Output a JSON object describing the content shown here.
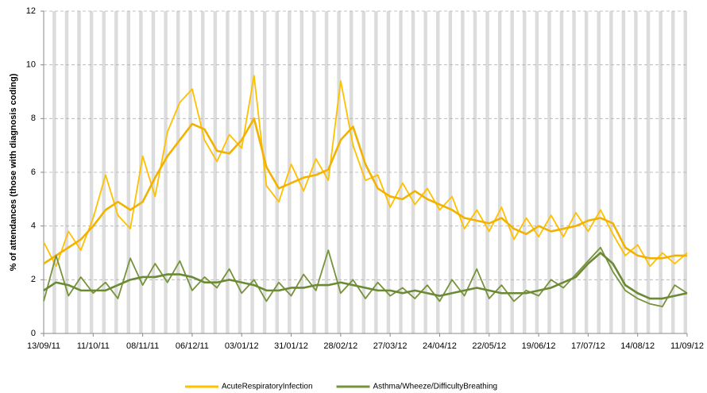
{
  "chart_data": {
    "type": "line",
    "y_label": "% of attendances (those with diagnosis coding)",
    "categories": [
      "13/09/11",
      null,
      null,
      null,
      "11/10/11",
      null,
      null,
      null,
      "08/11/11",
      null,
      null,
      null,
      "06/12/11",
      null,
      null,
      null,
      "03/01/12",
      null,
      null,
      null,
      "31/01/12",
      null,
      null,
      null,
      "28/02/12",
      null,
      null,
      null,
      "27/03/12",
      null,
      null,
      null,
      "24/04/12",
      null,
      null,
      null,
      "22/05/12",
      null,
      null,
      null,
      "19/06/12",
      null,
      null,
      null,
      "17/07/12",
      null,
      null,
      null,
      "14/08/12",
      null,
      null,
      null,
      "11/09/12"
    ],
    "series": [
      {
        "name": "AcuteRespiratoryInfection",
        "color": "#ffc000",
        "values": [
          3.4,
          2.5,
          3.8,
          3.1,
          4.3,
          5.9,
          4.4,
          3.9,
          6.6,
          5.1,
          7.5,
          8.6,
          9.1,
          7.2,
          6.4,
          7.4,
          6.9,
          9.6,
          5.5,
          4.9,
          6.3,
          5.3,
          6.5,
          5.7,
          9.4,
          7.0,
          5.7,
          5.9,
          4.7,
          5.6,
          4.8,
          5.4,
          4.6,
          5.1,
          3.9,
          4.6,
          3.8,
          4.7,
          3.5,
          4.3,
          3.6,
          4.4,
          3.6,
          4.5,
          3.8,
          4.6,
          3.7,
          2.9,
          3.3,
          2.5,
          3.0,
          2.6,
          3.0
        ]
      },
      {
        "color": "#f2b300",
        "values": [
          2.6,
          2.9,
          3.2,
          3.5,
          4.0,
          4.6,
          4.9,
          4.6,
          4.9,
          5.8,
          6.6,
          7.2,
          7.8,
          7.6,
          6.8,
          6.7,
          7.2,
          8.0,
          6.2,
          5.4,
          5.6,
          5.8,
          5.9,
          6.1,
          7.2,
          7.7,
          6.3,
          5.4,
          5.1,
          5.0,
          5.3,
          5.0,
          4.8,
          4.6,
          4.3,
          4.2,
          4.1,
          4.3,
          3.9,
          3.7,
          4.0,
          3.8,
          3.9,
          4.0,
          4.2,
          4.3,
          4.1,
          3.2,
          2.9,
          2.8,
          2.8,
          2.9,
          2.9
        ]
      },
      {
        "name": "Asthma/Wheeze/DifficultyBreathing",
        "color": "#77933c",
        "values": [
          1.2,
          2.9,
          1.4,
          2.1,
          1.5,
          1.9,
          1.3,
          2.8,
          1.8,
          2.6,
          1.9,
          2.7,
          1.6,
          2.1,
          1.7,
          2.4,
          1.5,
          2.0,
          1.2,
          1.9,
          1.4,
          2.2,
          1.6,
          3.1,
          1.5,
          2.0,
          1.3,
          1.9,
          1.4,
          1.7,
          1.3,
          1.8,
          1.2,
          2.0,
          1.4,
          2.4,
          1.3,
          1.8,
          1.2,
          1.6,
          1.4,
          2.0,
          1.7,
          2.2,
          2.7,
          3.2,
          2.3,
          1.6,
          1.3,
          1.1,
          1.0,
          1.8,
          1.5
        ]
      },
      {
        "color": "#6b8a33",
        "values": [
          1.6,
          1.9,
          1.8,
          1.6,
          1.6,
          1.6,
          1.8,
          2.0,
          2.1,
          2.1,
          2.2,
          2.2,
          2.1,
          1.9,
          1.9,
          2.0,
          1.9,
          1.8,
          1.6,
          1.6,
          1.7,
          1.7,
          1.8,
          1.8,
          1.9,
          1.8,
          1.7,
          1.6,
          1.6,
          1.5,
          1.6,
          1.5,
          1.4,
          1.5,
          1.6,
          1.7,
          1.6,
          1.5,
          1.5,
          1.5,
          1.6,
          1.7,
          1.9,
          2.1,
          2.6,
          3.0,
          2.6,
          1.8,
          1.5,
          1.3,
          1.3,
          1.4,
          1.5
        ]
      }
    ],
    "ylim": [
      0,
      12
    ],
    "yticks": [
      0,
      2,
      4,
      6,
      8,
      10,
      12
    ],
    "grid": true
  }
}
